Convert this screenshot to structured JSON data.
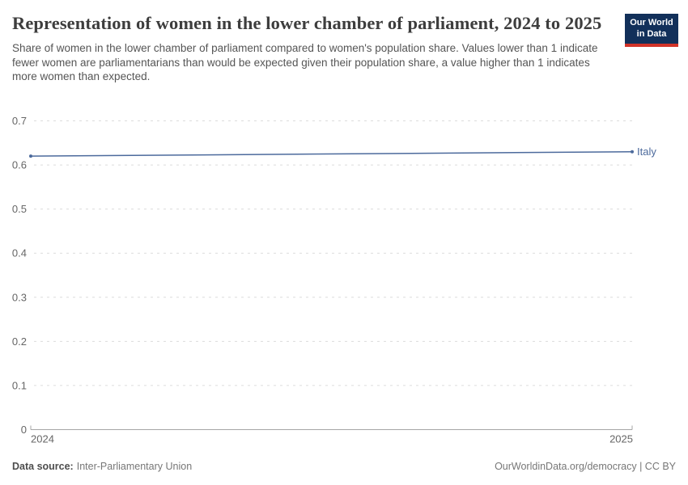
{
  "header": {
    "logo": {
      "line1": "Our World",
      "line2": "in Data",
      "bg_color": "#12305a",
      "accent_color": "#d13328",
      "text_color": "#ffffff"
    }
  },
  "chart_data": {
    "type": "line",
    "title": "Representation of women in the lower chamber of parliament, 2024 to 2025",
    "subtitle": "Share of women in the lower chamber of parliament compared to women's population share. Values lower than 1 indicate fewer women are parliamentarians than would be expected given their population share, a value higher than 1 indicates more women than expected.",
    "x": [
      2024,
      2025
    ],
    "x_tick_labels": [
      "2024",
      "2025"
    ],
    "series": [
      {
        "name": "Italy",
        "values": [
          0.62,
          0.63
        ],
        "color": "#4c6a9c"
      }
    ],
    "ylim": [
      0,
      0.7
    ],
    "yticks": [
      0,
      0.1,
      0.2,
      0.3,
      0.4,
      0.5,
      0.6,
      0.7
    ],
    "ytick_labels": [
      "0",
      "0.1",
      "0.2",
      "0.3",
      "0.4",
      "0.5",
      "0.6",
      "0.7"
    ],
    "grid": "horizontal-dashed",
    "legend": "line-end-label",
    "grid_color": "#dcdcdc",
    "axis_color": "#a5a5a5",
    "tick_label_color": "#666666"
  },
  "footer": {
    "source_label": "Data source:",
    "source_value": "Inter-Parliamentary Union",
    "right_text": "OurWorldinData.org/democracy | CC BY"
  }
}
